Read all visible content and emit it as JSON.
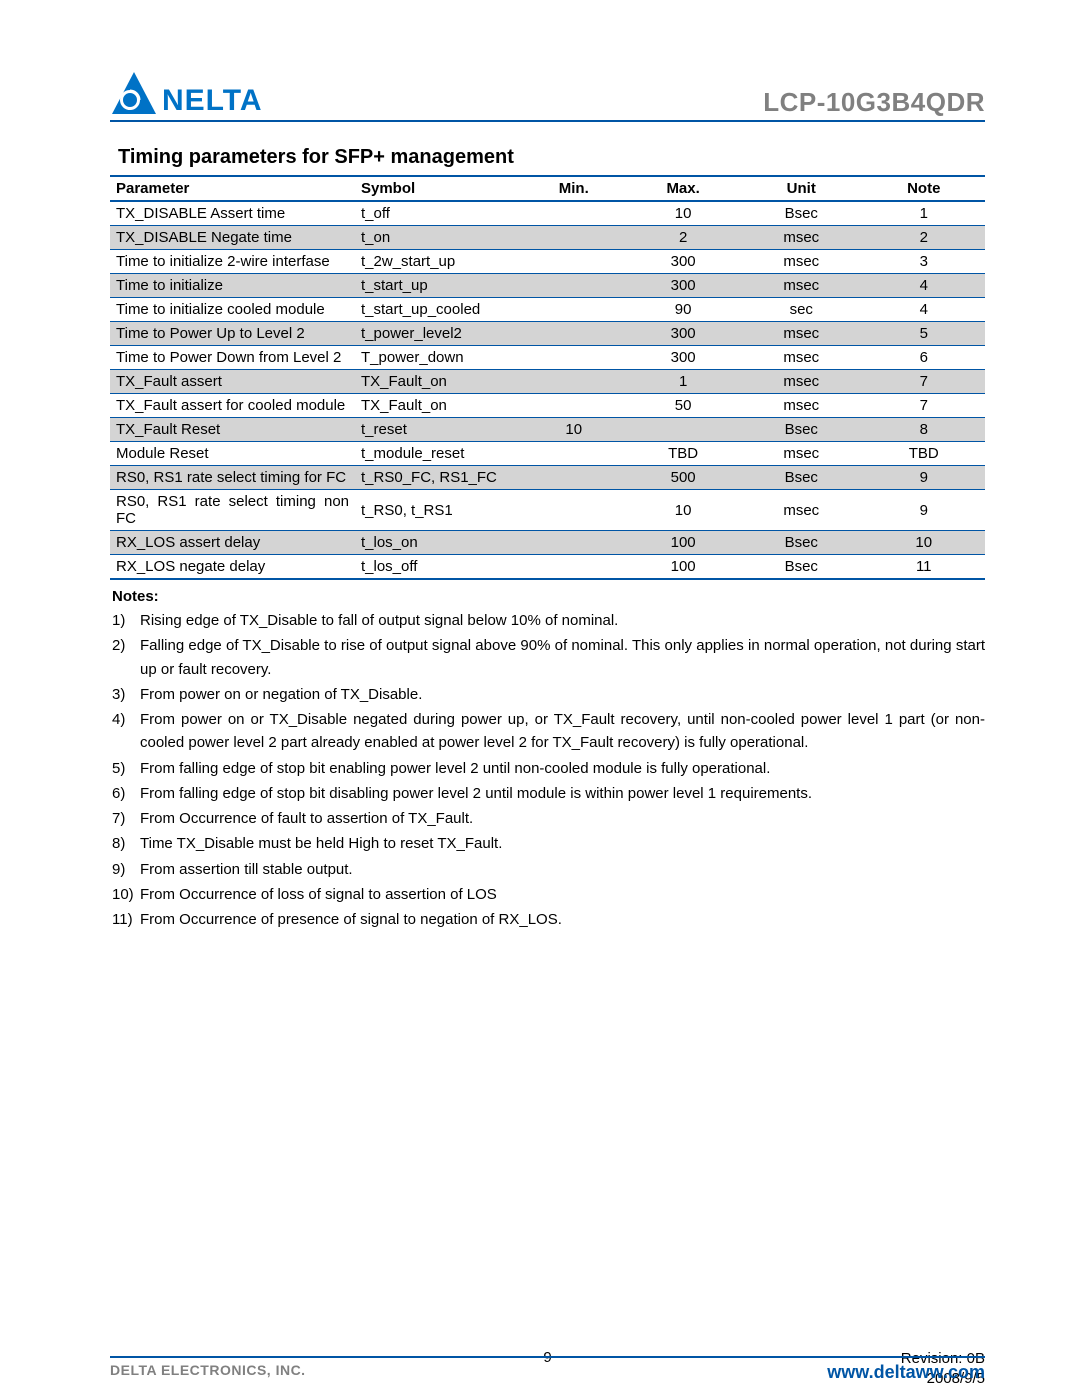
{
  "header": {
    "brand_text": "NELTA",
    "product_code": "LCP-10G3B4QDR",
    "logo_colors": {
      "triangle": "#0072c6",
      "circle": "#ffffff",
      "text": "#0072c6"
    }
  },
  "section_title": "Timing parameters for SFP+ management",
  "table": {
    "border_color": "#0055a5",
    "shade_color": "#d4d4d4",
    "columns": [
      "Parameter",
      "Symbol",
      "Min.",
      "Max.",
      "Unit",
      "Note"
    ],
    "rows": [
      {
        "shade": false,
        "cells": [
          "TX_DISABLE Assert time",
          "t_off",
          "",
          "10",
          "Bsec",
          "1"
        ]
      },
      {
        "shade": true,
        "cells": [
          "TX_DISABLE Negate time",
          "t_on",
          "",
          "2",
          "msec",
          "2"
        ]
      },
      {
        "shade": false,
        "cells": [
          "Time to initialize 2-wire interfase",
          "t_2w_start_up",
          "",
          "300",
          "msec",
          "3"
        ]
      },
      {
        "shade": true,
        "cells": [
          "Time to initialize",
          "t_start_up",
          "",
          "300",
          "msec",
          "4"
        ]
      },
      {
        "shade": false,
        "cells": [
          "Time to initialize cooled module",
          "t_start_up_cooled",
          "",
          "90",
          "sec",
          "4"
        ]
      },
      {
        "shade": true,
        "cells": [
          "Time to Power Up to Level 2",
          "t_power_level2",
          "",
          "300",
          "msec",
          "5"
        ]
      },
      {
        "shade": false,
        "cells": [
          "Time to Power Down from Level 2",
          "T_power_down",
          "",
          "300",
          "msec",
          "6"
        ]
      },
      {
        "shade": true,
        "cells": [
          "TX_Fault assert",
          "TX_Fault_on",
          "",
          "1",
          "msec",
          "7"
        ]
      },
      {
        "shade": false,
        "cells": [
          "TX_Fault assert for cooled module",
          "TX_Fault_on",
          "",
          "50",
          "msec",
          "7"
        ]
      },
      {
        "shade": true,
        "cells": [
          "TX_Fault Reset",
          "t_reset",
          "10",
          "",
          "Bsec",
          "8"
        ]
      },
      {
        "shade": false,
        "cells": [
          "Module Reset",
          "t_module_reset",
          "",
          "TBD",
          "msec",
          "TBD"
        ]
      },
      {
        "shade": true,
        "cells": [
          "RS0, RS1 rate select timing for FC",
          "t_RS0_FC, RS1_FC",
          "",
          "500",
          "Bsec",
          "9"
        ]
      },
      {
        "shade": false,
        "cells": [
          "RS0, RS1 rate select timing non FC",
          "t_RS0, t_RS1",
          "",
          "10",
          "msec",
          "9"
        ]
      },
      {
        "shade": true,
        "cells": [
          "RX_LOS assert delay",
          "t_los_on",
          "",
          "100",
          "Bsec",
          "10"
        ]
      },
      {
        "shade": false,
        "cells": [
          "RX_LOS negate delay",
          "t_los_off",
          "",
          "100",
          "Bsec",
          "11"
        ]
      }
    ]
  },
  "notes_heading": "Notes:",
  "notes": [
    "Rising edge of TX_Disable to fall of output signal below 10% of nominal.",
    "Falling edge of TX_Disable to rise of output signal above 90% of nominal. This only applies in normal operation, not during start up or fault recovery.",
    "From power on or negation of TX_Disable.",
    "From power on or TX_Disable negated during power up, or TX_Fault recovery, until non-cooled power level 1 part (or non-cooled power level 2 part already enabled at power level 2 for TX_Fault recovery) is fully operational.",
    "From falling edge of stop bit enabling power level 2 until non-cooled module is fully operational.",
    "From falling edge of stop bit disabling power level 2 until module is within power level 1 requirements.",
    "From Occurrence of fault to assertion of TX_Fault.",
    "Time TX_Disable must be held High to reset TX_Fault.",
    "From assertion till stable output.",
    "From Occurrence of loss of signal to assertion of LOS",
    "From Occurrence of presence of signal to negation of RX_LOS."
  ],
  "footer": {
    "page_number": "9",
    "revision": "Revision:  0B",
    "date": "2008/9/5",
    "company": "DELTA ELECTRONICS, INC.",
    "url": "www.deltaww.com"
  }
}
